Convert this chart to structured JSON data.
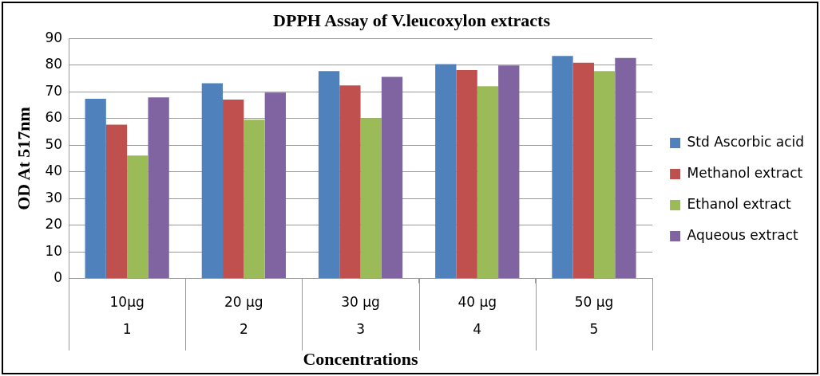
{
  "chart_data": {
    "type": "bar",
    "title": "DPPH Assay of V.leucoxylon extracts",
    "xlabel": "Concentrations",
    "ylabel": "OD At 517nm",
    "categories": [
      "10µg\n1",
      "20 µg\n2",
      "30 µg\n3",
      "40 µg\n4",
      "50 µg\n5"
    ],
    "series": [
      {
        "name": "Std Ascorbic acid",
        "color": "#4f81bd",
        "values": [
          67.4,
          73.2,
          77.8,
          80.4,
          83.5
        ]
      },
      {
        "name": "Methanol extract",
        "color": "#c0504d",
        "values": [
          57.7,
          67.1,
          72.4,
          78.2,
          80.9
        ]
      },
      {
        "name": "Ethanol extract",
        "color": "#9bbb59",
        "values": [
          46.1,
          59.6,
          60.2,
          72.1,
          77.8
        ]
      },
      {
        "name": "Aqueous extract",
        "color": "#8064a2",
        "values": [
          67.9,
          69.7,
          75.6,
          79.9,
          82.7
        ]
      }
    ],
    "ylim": [
      0,
      90
    ],
    "yticks": [
      0,
      10,
      20,
      30,
      40,
      50,
      60,
      70,
      80,
      90
    ],
    "grid": "y",
    "legend": "right"
  }
}
